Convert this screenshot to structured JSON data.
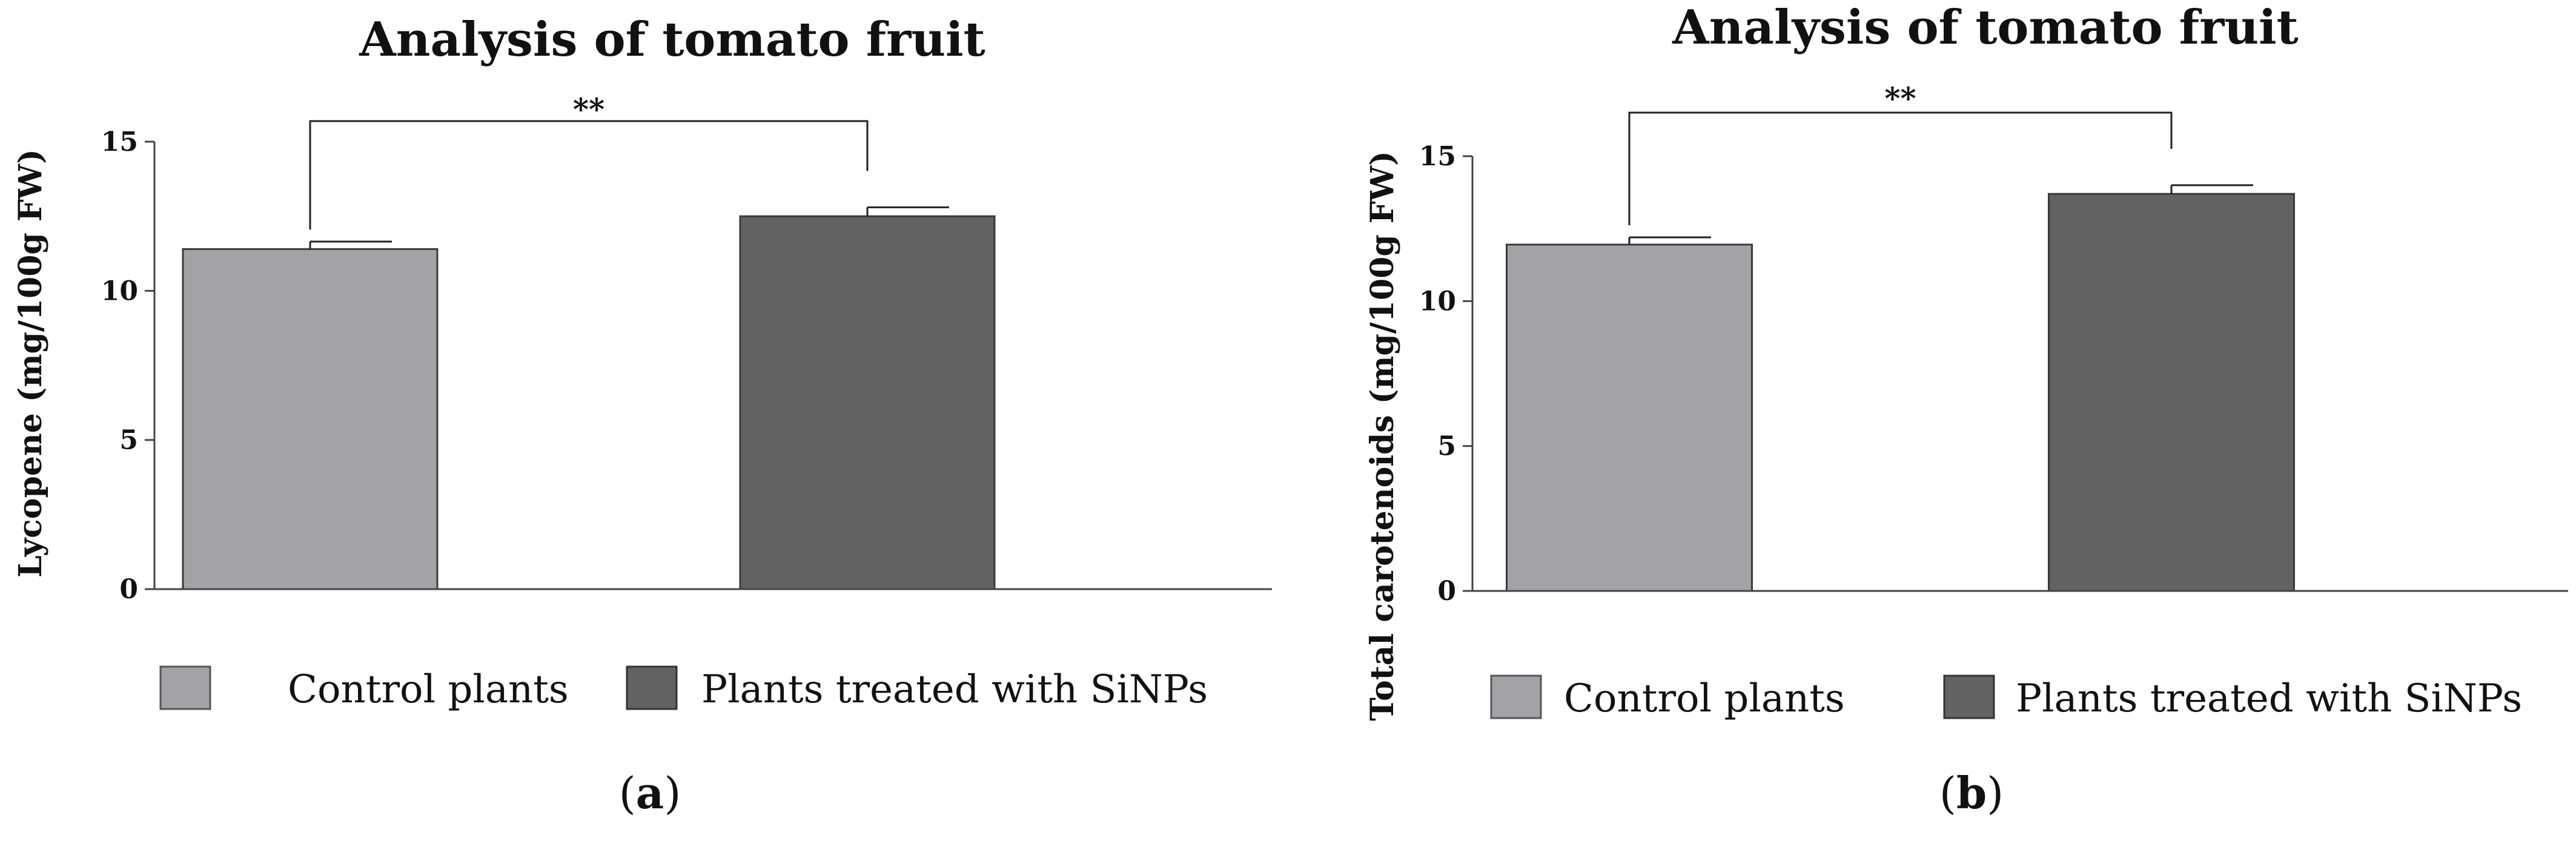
{
  "chart_data": [
    {
      "type": "bar",
      "title": "Analysis of tomato fruit",
      "ylabel": "Lycopene  (mg/100g FW)",
      "xlabel": "",
      "ylim": [
        0,
        15
      ],
      "yticks": [
        0,
        5,
        10,
        15
      ],
      "categories": [
        "Control plants",
        "Plants treated with SiNPs"
      ],
      "values": [
        11.4,
        12.5
      ],
      "errors": [
        0.25,
        0.3
      ],
      "colors": [
        "#a3a2a7",
        "#626262"
      ],
      "significance": "**",
      "legend": [
        "Control plants",
        "Plants treated with SiNPs"
      ],
      "panel_label": {
        "open": "(",
        "letter": "a",
        "close": ")"
      }
    },
    {
      "type": "bar",
      "title": "Analysis of tomato fruit",
      "ylabel": "Total carotenoids (mg/100g FW)",
      "xlabel": "",
      "ylim": [
        0,
        15
      ],
      "yticks": [
        0,
        5,
        10,
        15
      ],
      "categories": [
        "Control plants",
        "Plants treated with SiNPs"
      ],
      "values": [
        11.95,
        13.7
      ],
      "errors": [
        0.25,
        0.3
      ],
      "colors": [
        "#a3a2a7",
        "#626262"
      ],
      "significance": "**",
      "legend": [
        "Control plants",
        "Plants treated with SiNPs"
      ],
      "panel_label": {
        "open": "(",
        "letter": "b",
        "close": ")"
      }
    }
  ]
}
